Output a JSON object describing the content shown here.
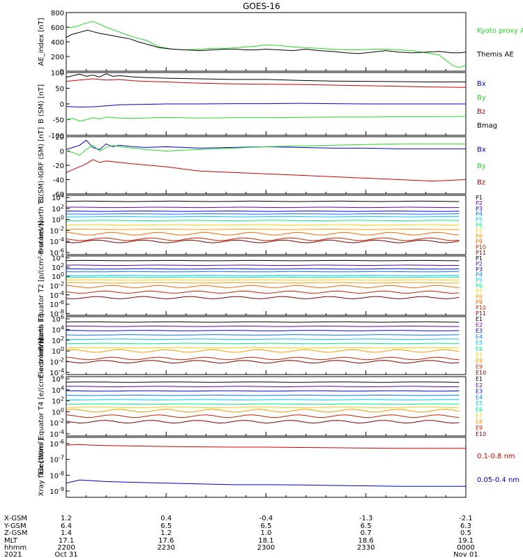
{
  "title": "GOES-16",
  "colors": {
    "black": "#000000",
    "blue": "#0000cc",
    "green": "#22dd22",
    "red": "#cc0000",
    "p1": "#000000",
    "p2": "#6600aa",
    "p3": "#0000ff",
    "p4": "#0077ff",
    "p5": "#00c8ff",
    "p6": "#00ee88",
    "p7": "#ffcc00",
    "p8": "#ff9900",
    "p9": "#ff6600",
    "p10": "#cc2200",
    "p11": "#880000"
  },
  "chart_data": [
    {
      "id": "ae",
      "type": "line",
      "ylabel": "AE_index [nT]",
      "ylim": [
        0,
        800
      ],
      "yticks": [
        0,
        200,
        400,
        600,
        800
      ],
      "legend": [
        {
          "text": "Kyoto proxy AE",
          "color": "green"
        },
        {
          "text": "Themis AE",
          "color": "black"
        }
      ],
      "series": [
        {
          "name": "Kyoto proxy AE",
          "color": "green",
          "x": [
            0,
            8,
            16,
            24,
            32,
            40,
            48,
            60,
            72,
            84,
            96,
            108,
            120,
            140,
            160,
            180,
            200,
            220,
            240,
            255,
            270,
            285,
            300,
            320,
            340,
            360,
            380,
            400,
            420,
            440,
            460,
            480,
            500,
            520,
            540,
            560,
            570,
            580,
            590,
            600
          ],
          "y": [
            590,
            600,
            610,
            640,
            660,
            680,
            650,
            600,
            560,
            520,
            480,
            450,
            420,
            330,
            300,
            290,
            300,
            310,
            310,
            320,
            330,
            340,
            360,
            350,
            330,
            320,
            310,
            300,
            290,
            290,
            300,
            300,
            290,
            280,
            250,
            220,
            150,
            80,
            50,
            80
          ]
        },
        {
          "name": "Themis AE",
          "color": "black",
          "x": [
            0,
            8,
            16,
            24,
            32,
            40,
            48,
            60,
            72,
            84,
            96,
            108,
            120,
            140,
            160,
            180,
            200,
            220,
            240,
            255,
            270,
            285,
            300,
            320,
            340,
            360,
            380,
            400,
            420,
            440,
            460,
            480,
            500,
            520,
            540,
            560,
            570,
            580,
            590,
            600
          ],
          "y": [
            460,
            500,
            520,
            540,
            560,
            540,
            520,
            500,
            480,
            460,
            440,
            400,
            370,
            320,
            300,
            290,
            280,
            290,
            300,
            300,
            290,
            290,
            300,
            290,
            280,
            300,
            280,
            270,
            250,
            240,
            260,
            280,
            260,
            250,
            260,
            270,
            260,
            250,
            250,
            260
          ]
        }
      ]
    },
    {
      "id": "bsm",
      "type": "line",
      "ylabel": "B (SM) [nT]",
      "ylim": [
        -100,
        100
      ],
      "yticks": [
        -100,
        -50,
        0,
        50,
        100
      ],
      "legend": [
        {
          "text": "Bx",
          "color": "blue"
        },
        {
          "text": "By",
          "color": "green"
        },
        {
          "text": "Bz",
          "color": "red"
        },
        {
          "text": "Bmag",
          "color": "black"
        }
      ],
      "series": [
        {
          "name": "Bmag",
          "color": "black",
          "x": [
            0,
            10,
            20,
            30,
            40,
            50,
            60,
            70,
            80,
            100,
            120,
            150,
            200,
            250,
            300,
            350,
            400,
            450,
            500,
            550,
            600
          ],
          "y": [
            85,
            90,
            95,
            88,
            92,
            86,
            96,
            88,
            90,
            86,
            84,
            82,
            80,
            78,
            78,
            75,
            73,
            72,
            71,
            70,
            70
          ]
        },
        {
          "name": "Bz",
          "color": "red",
          "x": [
            0,
            20,
            40,
            60,
            80,
            100,
            120,
            150,
            200,
            250,
            300,
            350,
            400,
            450,
            500,
            550,
            600
          ],
          "y": [
            72,
            76,
            80,
            76,
            78,
            74,
            72,
            70,
            66,
            64,
            63,
            62,
            60,
            58,
            56,
            54,
            53
          ]
        },
        {
          "name": "Bx",
          "color": "blue",
          "x": [
            0,
            20,
            40,
            60,
            80,
            100,
            150,
            200,
            250,
            300,
            350,
            400,
            450,
            500,
            550,
            600
          ],
          "y": [
            -8,
            -10,
            -9,
            -6,
            -3,
            -2,
            0,
            0,
            1,
            1,
            2,
            1,
            0,
            0,
            0,
            0
          ]
        },
        {
          "name": "By",
          "color": "green",
          "x": [
            0,
            10,
            20,
            30,
            40,
            50,
            60,
            80,
            100,
            150,
            200,
            250,
            300,
            350,
            400,
            450,
            500,
            550,
            600
          ],
          "y": [
            -50,
            -46,
            -55,
            -50,
            -44,
            -48,
            -42,
            -45,
            -46,
            -43,
            -45,
            -44,
            -44,
            -43,
            -42,
            -42,
            -41,
            -41,
            -40
          ]
        }
      ]
    },
    {
      "id": "bigrf",
      "type": "line",
      "ylabel": "B (SM)-IGRF (SM) [nT]",
      "ylim": [
        -60,
        20
      ],
      "yticks": [
        -60,
        -40,
        -20,
        0,
        20
      ],
      "legend": [
        {
          "text": "Bx",
          "color": "blue"
        },
        {
          "text": "By",
          "color": "green"
        },
        {
          "text": "Bz",
          "color": "red"
        }
      ],
      "series": [
        {
          "name": "Bx",
          "color": "blue",
          "x": [
            0,
            10,
            20,
            30,
            40,
            50,
            60,
            70,
            80,
            100,
            120,
            150,
            200,
            250,
            300,
            350,
            400,
            450,
            500,
            550,
            600
          ],
          "y": [
            2,
            5,
            8,
            15,
            5,
            2,
            10,
            6,
            8,
            6,
            5,
            6,
            4,
            5,
            6,
            5,
            4,
            4,
            3,
            3,
            3
          ]
        },
        {
          "name": "By",
          "color": "green",
          "x": [
            0,
            10,
            20,
            30,
            40,
            50,
            60,
            70,
            80,
            100,
            120,
            150,
            200,
            250,
            300,
            350,
            400,
            450,
            500,
            550,
            600
          ],
          "y": [
            0,
            -2,
            -6,
            2,
            8,
            0,
            5,
            8,
            6,
            4,
            2,
            0,
            2,
            4,
            6,
            7,
            8,
            9,
            10,
            10,
            10
          ]
        },
        {
          "name": "Bz",
          "color": "red",
          "x": [
            0,
            10,
            20,
            30,
            40,
            50,
            60,
            80,
            100,
            150,
            200,
            250,
            300,
            350,
            400,
            450,
            500,
            550,
            600
          ],
          "y": [
            -30,
            -26,
            -22,
            -18,
            -12,
            -16,
            -14,
            -16,
            -18,
            -22,
            -28,
            -30,
            -32,
            -34,
            -36,
            -38,
            -40,
            -42,
            -40
          ]
        }
      ]
    },
    {
      "id": "pt1",
      "type": "line",
      "scale": "log",
      "ylabel": "Protons North T1",
      "ytick_exps": [
        -6,
        -4,
        -2,
        0,
        2,
        4
      ],
      "ytick_labels": [
        "10-6",
        "10-4",
        "10-2",
        "100",
        "102",
        "104"
      ],
      "legend": [
        {
          "text": "P1",
          "color": "p1"
        },
        {
          "text": "P2",
          "color": "p2"
        },
        {
          "text": "P3",
          "color": "p3"
        },
        {
          "text": "P4",
          "color": "p4"
        },
        {
          "text": "P5",
          "color": "p5"
        },
        {
          "text": "P6",
          "color": "p6"
        },
        {
          "text": "P7",
          "color": "p7"
        },
        {
          "text": "P8",
          "color": "p8"
        },
        {
          "text": "P9",
          "color": "p9"
        },
        {
          "text": "P10",
          "color": "p10"
        },
        {
          "text": "P11",
          "color": "p11"
        }
      ],
      "levels_log": [
        3.3,
        2.2,
        1.5,
        1.0,
        0.5,
        -0.2,
        -1.0,
        -1.8,
        -2.6,
        -3.6,
        -4.0
      ],
      "colors": [
        "p1",
        "p2",
        "p3",
        "p4",
        "p5",
        "p6",
        "p7",
        "p8",
        "p9",
        "p10",
        "p11"
      ],
      "x_end": 590
    },
    {
      "id": "pt2",
      "type": "line",
      "scale": "log",
      "ylabel": "Protons Equator T2 [p/(cm²-s-sr-keV)]",
      "ytick_exps": [
        -8,
        -6,
        -4,
        -2,
        0,
        2,
        4
      ],
      "ytick_labels": [
        "10-8",
        "10-6",
        "10-4",
        "10-2",
        "100",
        "102",
        "104"
      ],
      "legend": [
        {
          "text": "P1",
          "color": "p1"
        },
        {
          "text": "P2",
          "color": "p2"
        },
        {
          "text": "P3",
          "color": "p3"
        },
        {
          "text": "P4",
          "color": "p4"
        },
        {
          "text": "P5",
          "color": "p5"
        },
        {
          "text": "P6",
          "color": "p6"
        },
        {
          "text": "P7",
          "color": "p7"
        },
        {
          "text": "P8",
          "color": "p8"
        },
        {
          "text": "P9",
          "color": "p9"
        },
        {
          "text": "P10",
          "color": "p10"
        },
        {
          "text": "P11",
          "color": "p11"
        }
      ],
      "levels_log": [
        3.4,
        2.4,
        1.6,
        1.0,
        0.2,
        -0.2,
        -0.8,
        -1.4,
        -2.2,
        -3.4,
        -4.6
      ],
      "colors": [
        "p1",
        "p2",
        "p3",
        "p4",
        "p5",
        "p6",
        "p7",
        "p8",
        "p9",
        "p10",
        "p11"
      ],
      "x_end": 590
    },
    {
      "id": "et3",
      "type": "line",
      "scale": "log",
      "ylabel": "Electrons North T3",
      "ytick_exps": [
        -4,
        -2,
        0,
        2,
        4,
        6
      ],
      "ytick_labels": [
        "10-4",
        "10-2",
        "100",
        "102",
        "104",
        "106"
      ],
      "legend": [
        {
          "text": "E1",
          "color": "p1"
        },
        {
          "text": "E2",
          "color": "p2"
        },
        {
          "text": "E3",
          "color": "p3"
        },
        {
          "text": "E4",
          "color": "p4"
        },
        {
          "text": "E5",
          "color": "p5"
        },
        {
          "text": "E6",
          "color": "p6"
        },
        {
          "text": "E7",
          "color": "p7"
        },
        {
          "text": "E8",
          "color": "p8"
        },
        {
          "text": "E9",
          "color": "p10"
        },
        {
          "text": "E10",
          "color": "p11"
        }
      ],
      "levels_log": [
        5.4,
        4.6,
        3.8,
        3.0,
        2.2,
        1.4,
        0.6,
        0.0,
        -1.4,
        -2.0
      ],
      "colors": [
        "p1",
        "p2",
        "p3",
        "p4",
        "p5",
        "p6",
        "p7",
        "p8",
        "p10",
        "p11"
      ],
      "x_end": 590
    },
    {
      "id": "et4",
      "type": "line",
      "scale": "log",
      "ylabel": "Electrons Equator T4 [e/(cm²-s-sr-keV)]",
      "ytick_exps": [
        -4,
        -2,
        0,
        2,
        4,
        6
      ],
      "ytick_labels": [
        "10-4",
        "10-2",
        "100",
        "102",
        "104",
        "106"
      ],
      "legend": [
        {
          "text": "E1",
          "color": "p1"
        },
        {
          "text": "E2",
          "color": "p2"
        },
        {
          "text": "E3",
          "color": "p3"
        },
        {
          "text": "E4",
          "color": "p4"
        },
        {
          "text": "E5",
          "color": "p5"
        },
        {
          "text": "E6",
          "color": "p6"
        },
        {
          "text": "E7",
          "color": "p7"
        },
        {
          "text": "E8",
          "color": "p8"
        },
        {
          "text": "E9",
          "color": "p10"
        },
        {
          "text": "E10",
          "color": "p11"
        }
      ],
      "levels_log": [
        5.4,
        4.6,
        3.8,
        3.0,
        2.2,
        1.4,
        0.8,
        0.2,
        -0.8,
        -1.8
      ],
      "colors": [
        "p1",
        "p2",
        "p3",
        "p4",
        "p5",
        "p6",
        "p7",
        "p8",
        "p10",
        "p11"
      ],
      "x_end": 590
    },
    {
      "id": "xray",
      "type": "line",
      "scale": "log",
      "ylabel": "Xray flux [W/m²]",
      "ytick_exps": [
        -9,
        -8,
        -7,
        -6
      ],
      "ytick_labels": [
        "10-9",
        "10-8",
        "10-7",
        "10-6"
      ],
      "legend": [
        {
          "text": "0.1-0.8 nm",
          "color": "red"
        },
        {
          "text": "0.05-0.4 nm",
          "color": "blue"
        }
      ],
      "series": [
        {
          "name": "0.1-0.8 nm",
          "color": "red",
          "x": [
            0,
            20,
            40,
            60,
            100,
            150,
            200,
            250,
            300,
            350,
            400,
            450,
            500,
            550,
            600
          ],
          "y_log": [
            -6.1,
            -6.05,
            -6.1,
            -6.12,
            -6.15,
            -6.18,
            -6.2,
            -6.22,
            -6.22,
            -6.24,
            -6.26,
            -6.28,
            -6.3,
            -6.3,
            -6.3
          ]
        },
        {
          "name": "0.05-0.4 nm",
          "color": "blue",
          "x": [
            0,
            20,
            40,
            60,
            100,
            150,
            200,
            250,
            300,
            350,
            400,
            450,
            500,
            550,
            600
          ],
          "y_log": [
            -8.5,
            -8.3,
            -8.35,
            -8.4,
            -8.45,
            -8.5,
            -8.55,
            -8.6,
            -8.6,
            -8.62,
            -8.65,
            -8.67,
            -8.7,
            -8.7,
            -8.7
          ]
        }
      ]
    }
  ],
  "xaxis": {
    "row_labels": [
      "X-GSM",
      "Y-GSM",
      "Z-GSM",
      "MLT",
      "hhmm",
      "2021"
    ],
    "columns": [
      {
        "values": [
          "1.2",
          "6.4",
          "1.4",
          "17.1",
          "2200",
          "Oct 31"
        ]
      },
      {
        "values": [
          "0.4",
          "6.5",
          "1.2",
          "17.6",
          "2230",
          ""
        ]
      },
      {
        "values": [
          "-0.4",
          "6.5",
          "1.0",
          "18.1",
          "2300",
          ""
        ]
      },
      {
        "values": [
          "-1.3",
          "6.5",
          "0.7",
          "18.6",
          "2330",
          ""
        ]
      },
      {
        "values": [
          "-2.1",
          "6.3",
          "0.5",
          "19.1",
          "0000",
          "Nov 01"
        ]
      }
    ]
  }
}
